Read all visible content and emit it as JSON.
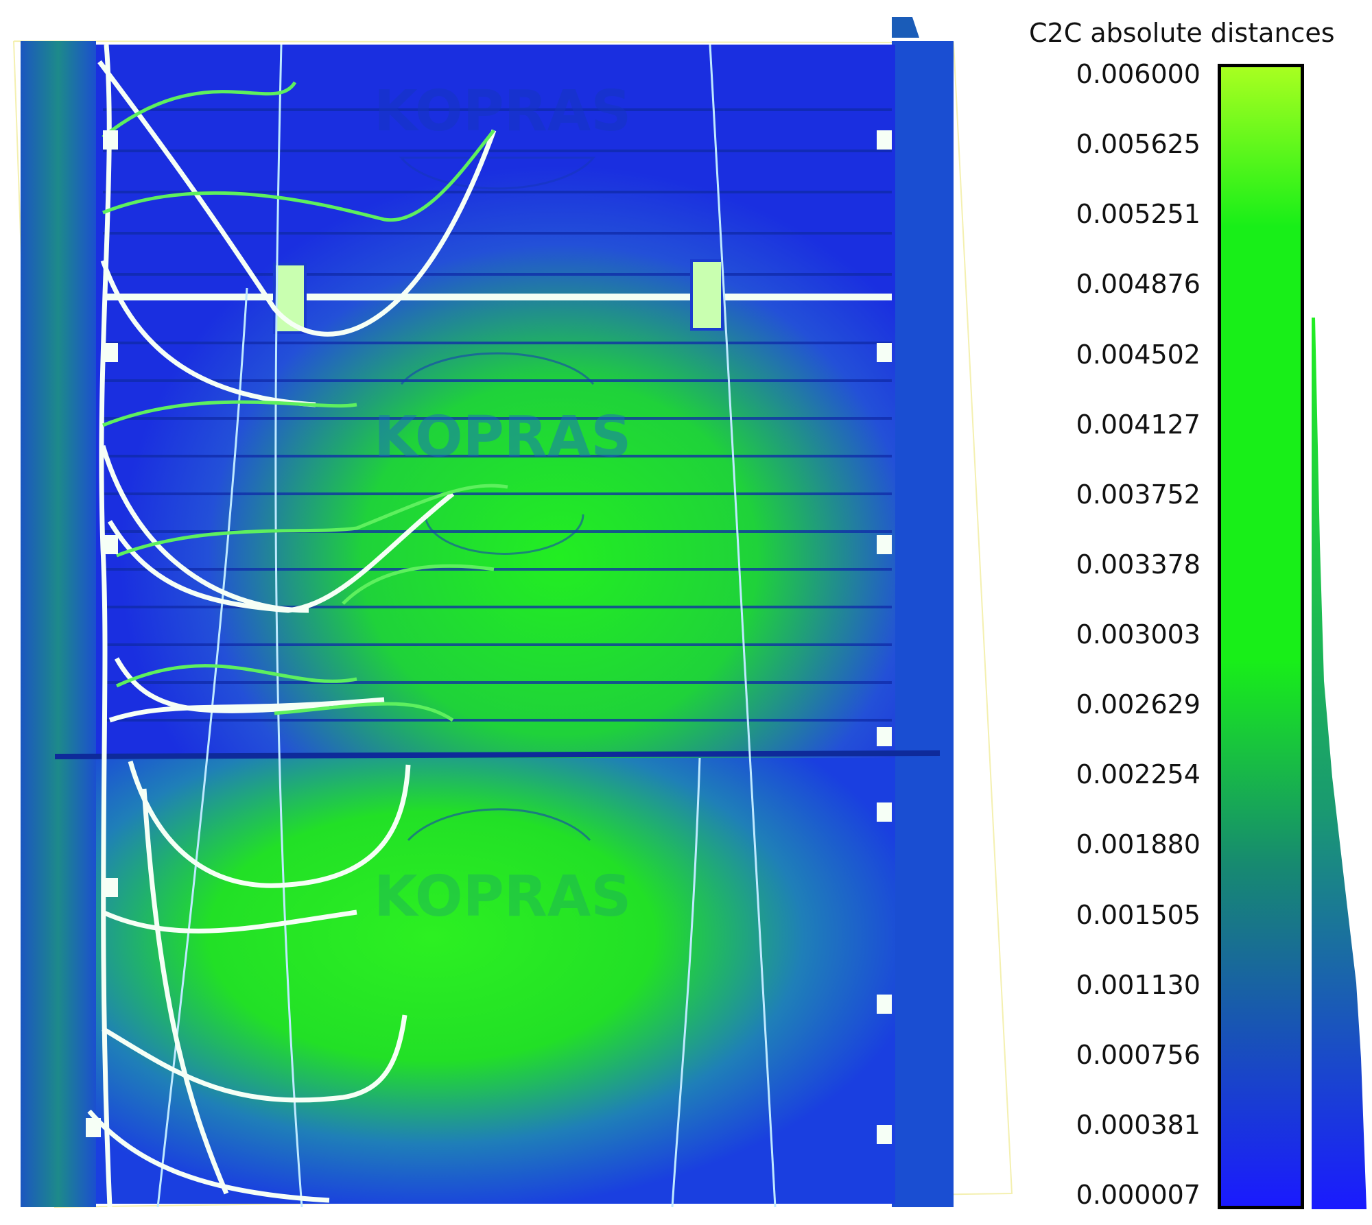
{
  "scene": {
    "description_icon": "point-cloud-c2c-distance-map",
    "colors": {
      "low": "#1a1aff",
      "mid": "#178a70",
      "high": "#a8ff20",
      "green": "#18ef18",
      "cable": "#f4fff4"
    },
    "visible_text": {
      "logo_upper": "KOPRAS",
      "logo_middle": "KOPRAS",
      "logo_lower": "KOPRAS"
    }
  },
  "scale": {
    "title": "C2C absolute distances",
    "ticks": [
      "0.006000",
      "0.005625",
      "0.005251",
      "0.004876",
      "0.004502",
      "0.004127",
      "0.003752",
      "0.003378",
      "0.003003",
      "0.002629",
      "0.002254",
      "0.001880",
      "0.001505",
      "0.001130",
      "0.000756",
      "0.000381",
      "0.000007"
    ],
    "min": 7e-06,
    "max": 0.006
  }
}
